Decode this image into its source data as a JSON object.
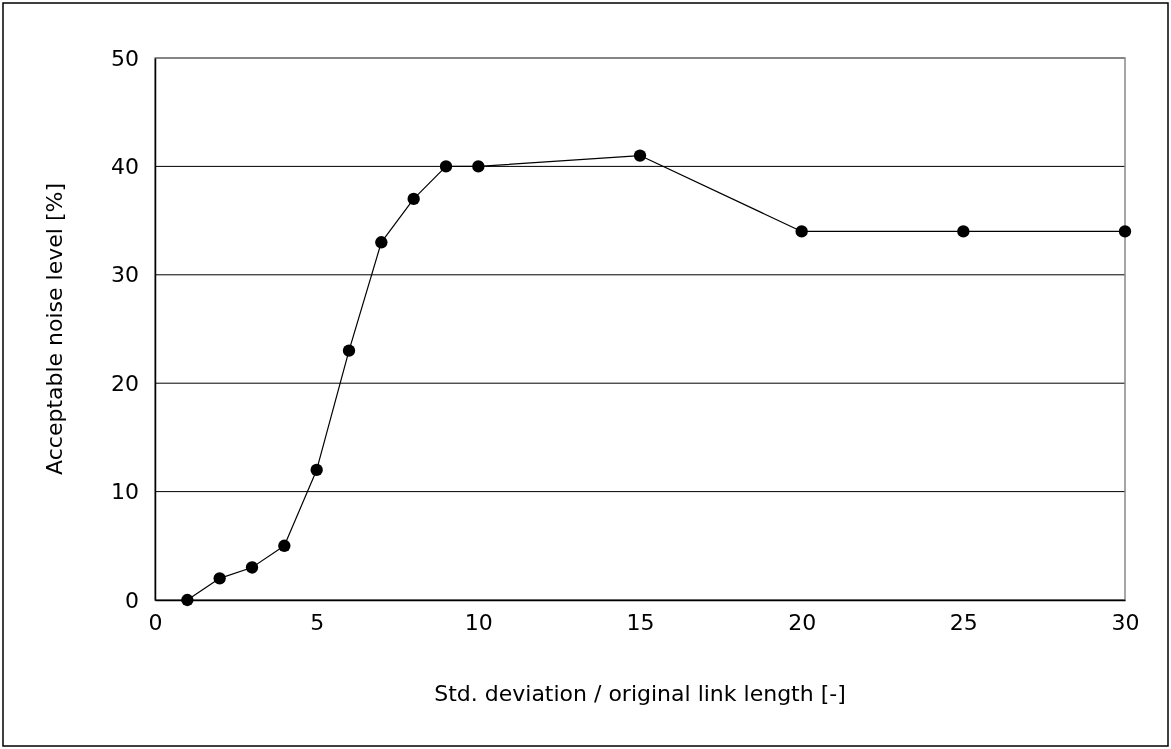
{
  "chart_data": {
    "type": "line",
    "xlabel": "Std. deviation / original link length [-]",
    "ylabel": "Acceptable noise level [%]",
    "x": [
      1,
      2,
      3,
      4,
      5,
      6,
      7,
      8,
      9,
      10,
      15,
      20,
      25,
      30
    ],
    "series": [
      {
        "color": "#000000",
        "values": [
          0,
          2,
          3,
          5,
          12,
          23,
          33,
          37,
          40,
          40,
          41,
          34,
          34,
          34
        ]
      }
    ],
    "xlim": [
      0,
      30
    ],
    "xticks": [
      0,
      5,
      10,
      15,
      20,
      25,
      30
    ],
    "ylim": [
      0,
      50
    ],
    "yticks": [
      0,
      10,
      20,
      30,
      40,
      50
    ],
    "grid": "y",
    "marker": "circle",
    "line_style": "solid"
  }
}
